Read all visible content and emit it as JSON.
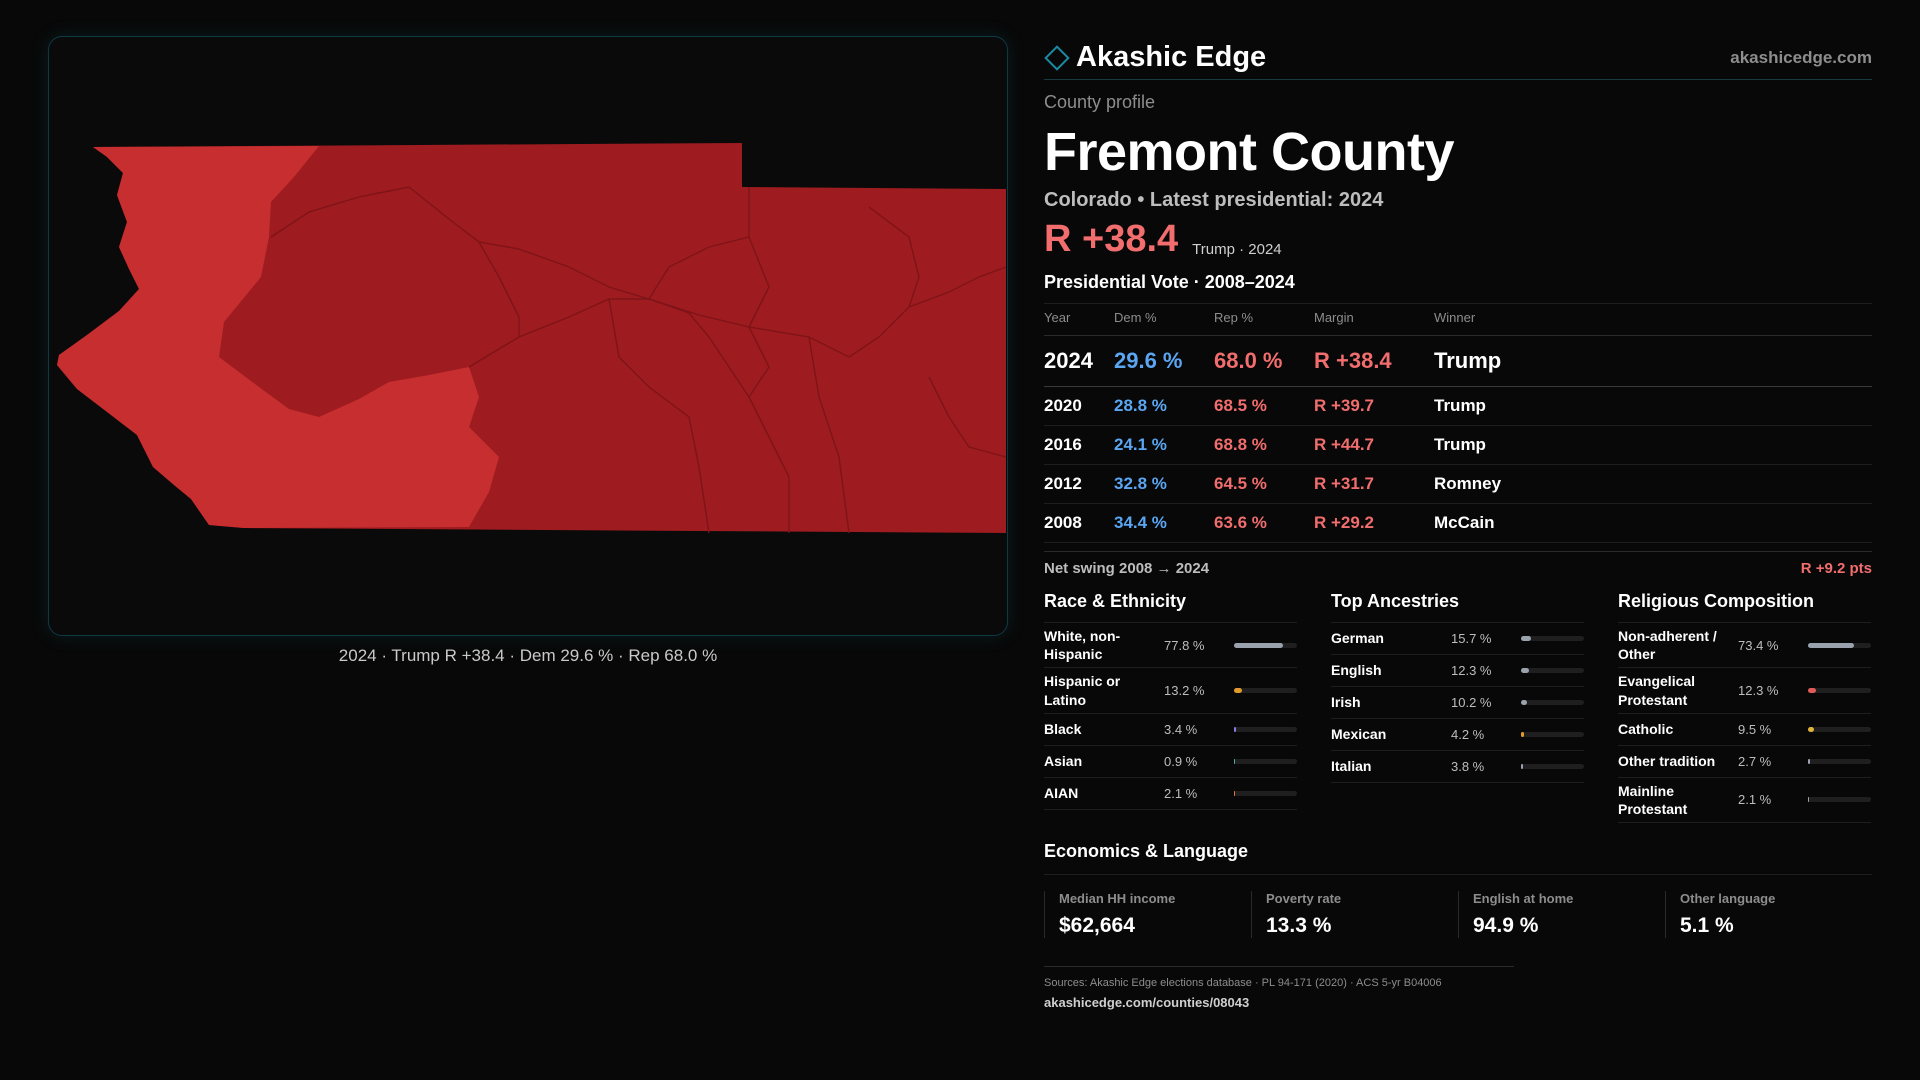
{
  "brand": {
    "name": "Akashic Edge",
    "url": "akashicedge.com"
  },
  "kicker": "County profile",
  "county": "Fremont County",
  "subtitle": "Colorado • Latest presidential: 2024",
  "headline": {
    "margin": "R +38.4",
    "note": "Trump · 2024"
  },
  "map": {
    "caption": "2024 · Trump R +38.4 · Dem 29.6 % · Rep 68.0 %",
    "colors": {
      "light_red": "#c72e30",
      "dark_red": "#9e1b1f",
      "border": "#7e1418"
    }
  },
  "vote": {
    "title": "Presidential Vote · 2008–2024",
    "headers": {
      "year": "Year",
      "dem": "Dem %",
      "rep": "Rep %",
      "margin": "Margin",
      "winner": "Winner"
    },
    "rows": [
      {
        "year": "2024",
        "dem": "29.6 %",
        "rep": "68.0 %",
        "margin": "R +38.4",
        "winner": "Trump"
      },
      {
        "year": "2020",
        "dem": "28.8 %",
        "rep": "68.5 %",
        "margin": "R +39.7",
        "winner": "Trump"
      },
      {
        "year": "2016",
        "dem": "24.1 %",
        "rep": "68.8 %",
        "margin": "R +44.7",
        "winner": "Trump"
      },
      {
        "year": "2012",
        "dem": "32.8 %",
        "rep": "64.5 %",
        "margin": "R +31.7",
        "winner": "Romney"
      },
      {
        "year": "2008",
        "dem": "34.4 %",
        "rep": "63.6 %",
        "margin": "R +29.2",
        "winner": "McCain"
      }
    ],
    "swing_label": "Net swing 2008 → 2024",
    "swing_value": "R +9.2 pts"
  },
  "race": {
    "title": "Race & Ethnicity",
    "items": [
      {
        "label": "White, non-Hispanic",
        "value": "77.8 %",
        "pct": 77.8,
        "color": "#9aa3ad"
      },
      {
        "label": "Hispanic or Latino",
        "value": "13.2 %",
        "pct": 13.2,
        "color": "#e39a2c"
      },
      {
        "label": "Black",
        "value": "3.4 %",
        "pct": 3.4,
        "color": "#8a7be0"
      },
      {
        "label": "Asian",
        "value": "0.9 %",
        "pct": 0.9,
        "color": "#4fb1a6"
      },
      {
        "label": "AIAN",
        "value": "2.1 %",
        "pct": 2.1,
        "color": "#e0783a"
      }
    ]
  },
  "ancestry": {
    "title": "Top Ancestries",
    "items": [
      {
        "label": "German",
        "value": "15.7 %",
        "pct": 15.7,
        "color": "#9aa3ad"
      },
      {
        "label": "English",
        "value": "12.3 %",
        "pct": 12.3,
        "color": "#9aa3ad"
      },
      {
        "label": "Irish",
        "value": "10.2 %",
        "pct": 10.2,
        "color": "#9aa3ad"
      },
      {
        "label": "Mexican",
        "value": "4.2 %",
        "pct": 4.2,
        "color": "#e39a2c"
      },
      {
        "label": "Italian",
        "value": "3.8 %",
        "pct": 3.8,
        "color": "#9aa3ad"
      }
    ]
  },
  "religion": {
    "title": "Religious Composition",
    "items": [
      {
        "label": "Non-adherent / Other",
        "value": "73.4 %",
        "pct": 73.4,
        "color": "#9aa3ad"
      },
      {
        "label": "Evangelical Protestant",
        "value": "12.3 %",
        "pct": 12.3,
        "color": "#e05a5a"
      },
      {
        "label": "Catholic",
        "value": "9.5 %",
        "pct": 9.5,
        "color": "#e0b23a"
      },
      {
        "label": "Other tradition",
        "value": "2.7 %",
        "pct": 2.7,
        "color": "#9aa3ad"
      },
      {
        "label": "Mainline Protestant",
        "value": "2.1 %",
        "pct": 2.1,
        "color": "#9aa3ad"
      }
    ]
  },
  "economics": {
    "title": "Economics & Language",
    "items": [
      {
        "label": "Median HH income",
        "value": "$62,664"
      },
      {
        "label": "Poverty rate",
        "value": "13.3 %"
      },
      {
        "label": "English at home",
        "value": "94.9 %"
      },
      {
        "label": "Other language",
        "value": "5.1 %"
      }
    ]
  },
  "sources": {
    "text": "Sources: Akashic Edge elections database · PL 94-171 (2020) · ACS 5-yr B04006",
    "url": "akashicedge.com/counties/08043"
  }
}
